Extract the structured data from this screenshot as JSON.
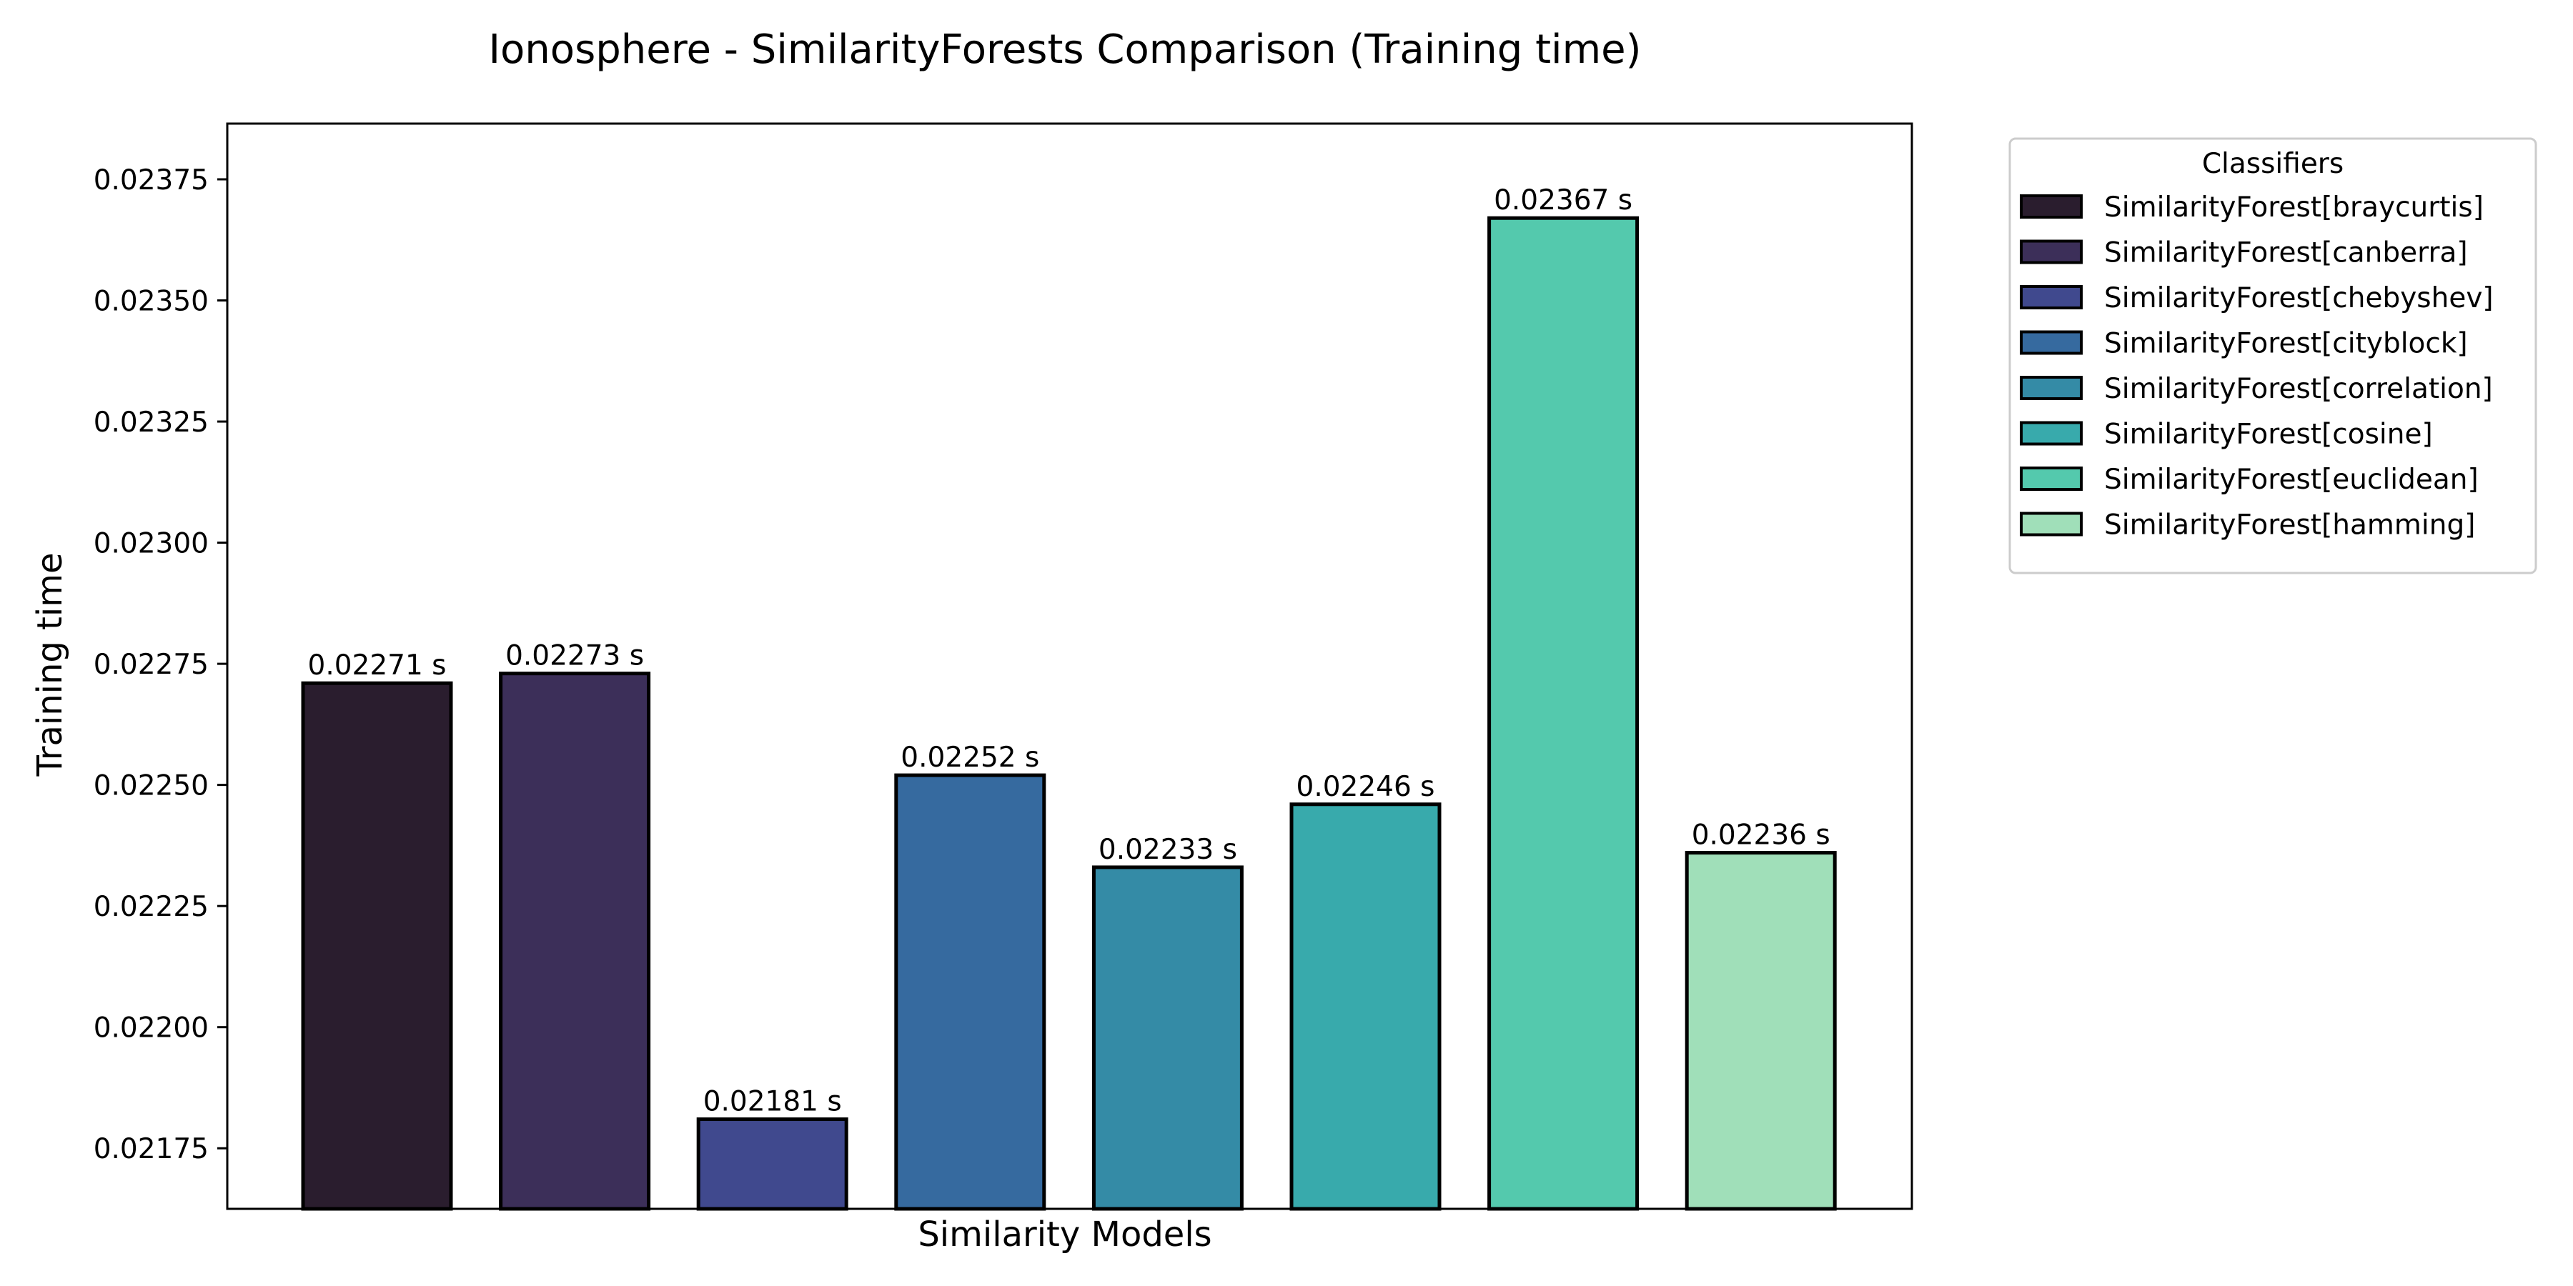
{
  "chart_data": {
    "type": "bar",
    "title": "Ionosphere - SimilarityForests Comparison (Training time)",
    "xlabel": "Similarity Models",
    "ylabel": "Training time",
    "ylim": [
      0.021625,
      0.023865
    ],
    "yticks": [
      0.02175,
      0.022,
      0.02225,
      0.0225,
      0.02275,
      0.023,
      0.02325,
      0.0235,
      0.02375
    ],
    "ytick_labels": [
      "0.02175",
      "0.02200",
      "0.02225",
      "0.02250",
      "0.02275",
      "0.02300",
      "0.02325",
      "0.02350",
      "0.02375"
    ],
    "grid": false,
    "legend_position": "outside top-right",
    "legend_title": "Classifiers",
    "series": [
      {
        "name": "SimilarityForest[braycurtis]",
        "value": 0.02271,
        "label": "0.02271 s",
        "color": "#2a1d2e"
      },
      {
        "name": "SimilarityForest[canberra]",
        "value": 0.02273,
        "label": "0.02273 s",
        "color": "#3c2f59"
      },
      {
        "name": "SimilarityForest[chebyshev]",
        "value": 0.02181,
        "label": "0.02181 s",
        "color": "#40498e"
      },
      {
        "name": "SimilarityForest[cityblock]",
        "value": 0.02252,
        "label": "0.02252 s",
        "color": "#366a9f"
      },
      {
        "name": "SimilarityForest[correlation]",
        "value": 0.02233,
        "label": "0.02233 s",
        "color": "#348ba6"
      },
      {
        "name": "SimilarityForest[cosine]",
        "value": 0.02246,
        "label": "0.02246 s",
        "color": "#38aaac"
      },
      {
        "name": "SimilarityForest[euclidean]",
        "value": 0.02367,
        "label": "0.02367 s",
        "color": "#54c9ad"
      },
      {
        "name": "SimilarityForest[hamming]",
        "value": 0.02236,
        "label": "0.02236 s",
        "color": "#a0dfb9"
      }
    ]
  }
}
